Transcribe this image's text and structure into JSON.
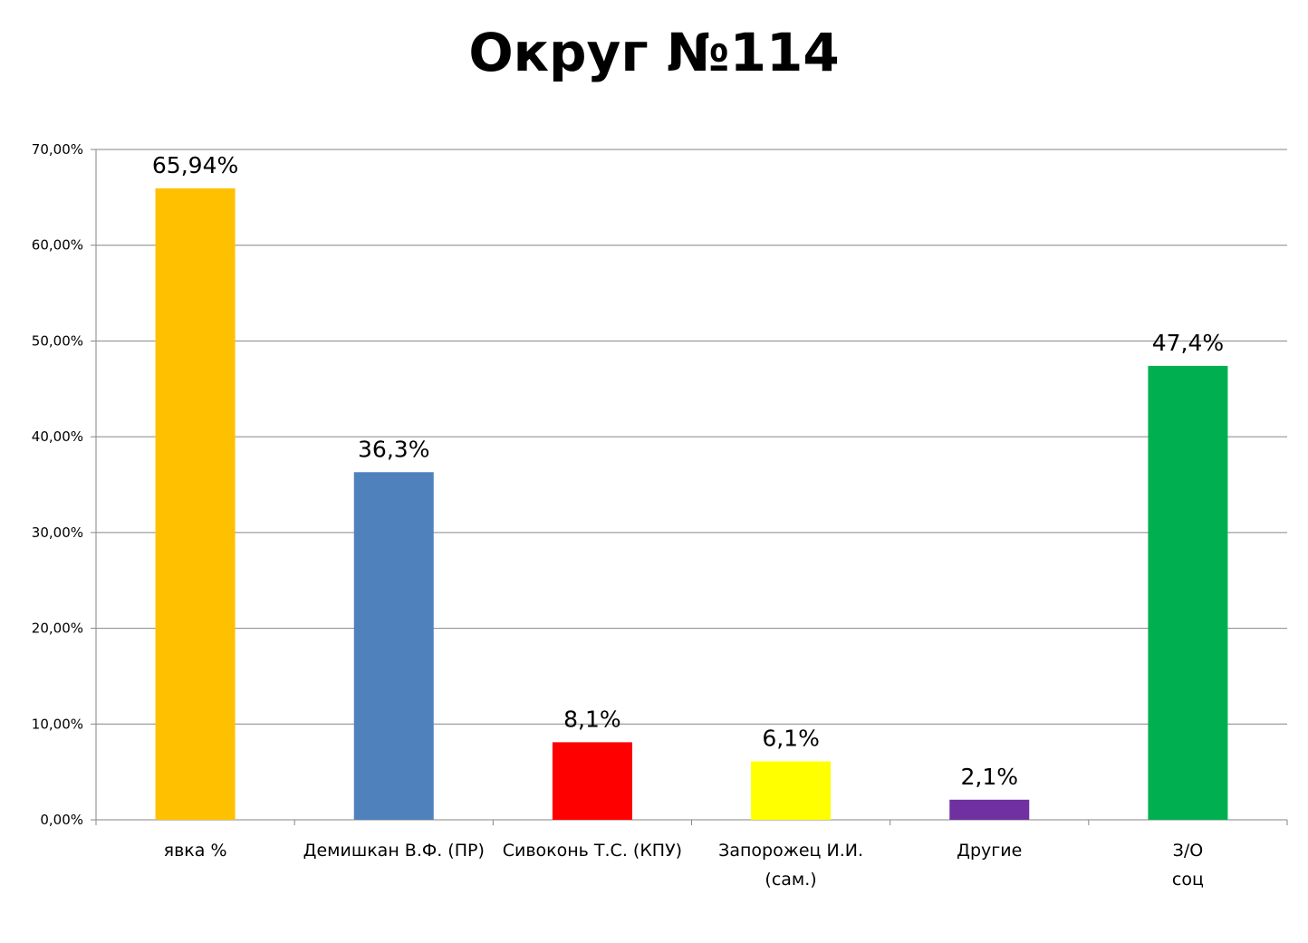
{
  "chart_data": {
    "type": "bar",
    "title": "Округ №114",
    "xlabel": "",
    "ylabel": "",
    "categories": [
      [
        "явка %"
      ],
      [
        "Демишкан В.Ф. (ПР)"
      ],
      [
        "Сивоконь Т.С. (КПУ)"
      ],
      [
        "Запорожец И.И.",
        "(сам.)"
      ],
      [
        "Другие"
      ],
      [
        "З/О",
        "соц"
      ]
    ],
    "values": [
      65.94,
      36.3,
      8.1,
      6.1,
      2.1,
      47.4
    ],
    "data_labels": [
      "65,94%",
      "36,3%",
      "8,1%",
      "6,1%",
      "2,1%",
      "47,4%"
    ],
    "colors": [
      "#FFC000",
      "#4F81BD",
      "#FF0000",
      "#FFFF00",
      "#7030A0",
      "#00B050"
    ],
    "ylim": [
      0,
      70
    ],
    "yticks": [
      0,
      10,
      20,
      30,
      40,
      50,
      60,
      70
    ],
    "ytick_labels": [
      "0,00%",
      "10,00%",
      "20,00%",
      "30,00%",
      "40,00%",
      "50,00%",
      "60,00%",
      "70,00%"
    ],
    "grid": true,
    "legend": "none",
    "gridline_color": "#868686",
    "axis_color": "#868686"
  }
}
